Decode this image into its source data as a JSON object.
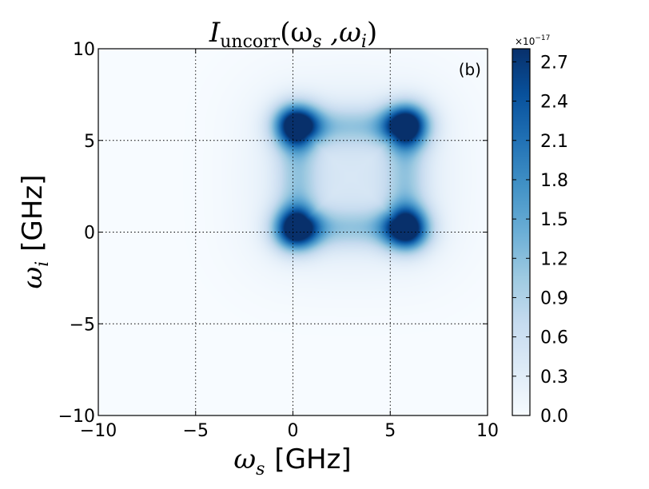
{
  "chart_data": {
    "type": "heatmap",
    "title": {
      "symbol": "I",
      "subscript": "uncorr",
      "args": "(ω",
      "args_sub1": "s",
      "sep": " ,ω",
      "args_sub2": "i",
      "close": ")"
    },
    "panel_label": "(b)",
    "xlabel": {
      "symbol": "ω",
      "subscript": "s",
      "unit": "[GHz]"
    },
    "ylabel": {
      "symbol": "ω",
      "subscript": "i",
      "unit": "[GHz]"
    },
    "xlim": [
      -10,
      10
    ],
    "ylim": [
      -10,
      10
    ],
    "x_ticks": [
      -10,
      -5,
      0,
      5,
      10
    ],
    "y_ticks": [
      -10,
      -5,
      0,
      5,
      10
    ],
    "x_tick_labels": [
      "−10",
      "−5",
      "0",
      "5",
      "10"
    ],
    "y_tick_labels": [
      "−10",
      "−5",
      "0",
      "5",
      "10"
    ],
    "grid": true,
    "colormap": "Blues",
    "colorbar": {
      "range": [
        0.0,
        2.8
      ],
      "ticks": [
        0.0,
        0.3,
        0.6,
        0.9,
        1.2,
        1.5,
        1.8,
        2.1,
        2.4,
        2.7
      ],
      "tick_labels": [
        "0.0",
        "0.3",
        "0.6",
        "0.9",
        "1.2",
        "1.5",
        "1.8",
        "2.1",
        "2.4",
        "2.7"
      ],
      "multiplier_base": "×10",
      "multiplier_exp": "−17"
    },
    "peaks": [
      {
        "x": 0.2,
        "y": 5.8,
        "value": 2.8
      },
      {
        "x": 5.8,
        "y": 5.8,
        "value": 2.8
      },
      {
        "x": 0.2,
        "y": 0.2,
        "value": 2.8
      },
      {
        "x": 5.8,
        "y": 0.2,
        "value": 2.8
      }
    ],
    "peak_width": 0.8,
    "ridges": [
      {
        "from": [
          0.2,
          0.2
        ],
        "to": [
          5.8,
          0.2
        ],
        "value": 1.0
      },
      {
        "from": [
          0.2,
          5.8
        ],
        "to": [
          5.8,
          5.8
        ],
        "value": 1.0
      },
      {
        "from": [
          0.2,
          0.2
        ],
        "to": [
          0.2,
          5.8
        ],
        "value": 1.0
      },
      {
        "from": [
          5.8,
          0.2
        ],
        "to": [
          5.8,
          5.8
        ],
        "value": 1.0
      }
    ],
    "ridge_width": 0.7,
    "halo_value": 0.22,
    "halo_width": 2.6
  }
}
